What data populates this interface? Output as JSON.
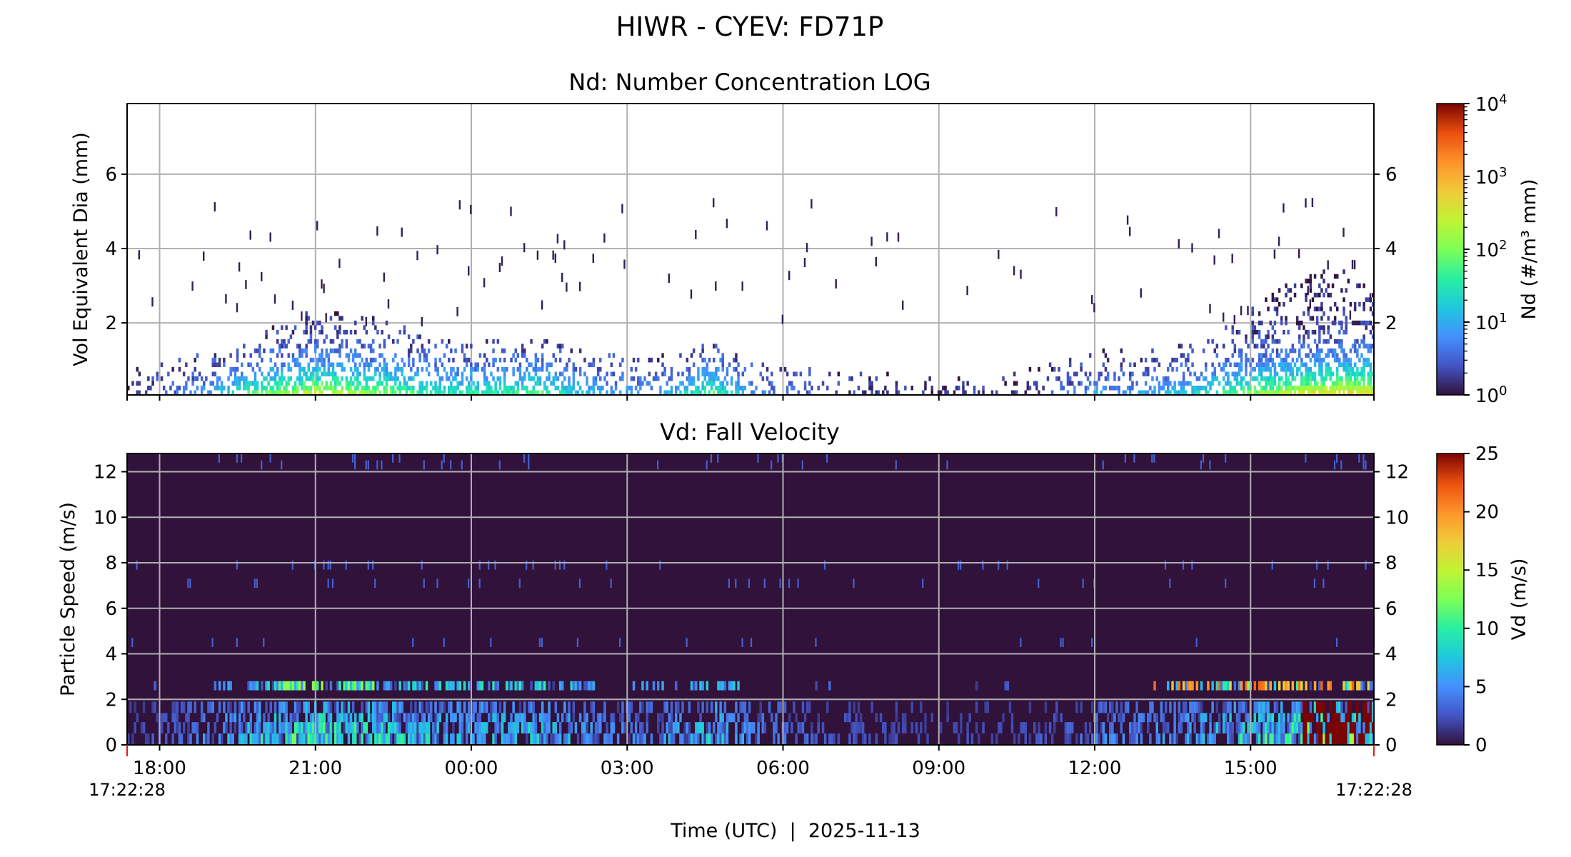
{
  "figure": {
    "suptitle": "HIWR - CYEV: FD71P",
    "xlabel": "Time (UTC)  |  2025-11-13",
    "start_label": "17:22:28",
    "end_label": "17:22:28"
  },
  "colors": {
    "grid": "#b0b0b0",
    "vd_background": "#30123b",
    "marker": "#e31a1c"
  },
  "chart_data": [
    {
      "type": "heatmap",
      "title": "Nd: Number Concentration LOG",
      "xlabel": "Time (UTC)  |  2025-11-13",
      "ylabel": "Vol Equivalent Dia (mm)",
      "x_range": [
        "2025-11-12T17:22:28Z",
        "2025-11-13T17:22:28Z"
      ],
      "x_ticks": [
        "18:00",
        "21:00",
        "00:00",
        "03:00",
        "06:00",
        "09:00",
        "12:00",
        "15:00"
      ],
      "ylim": [
        0.062,
        7.9
      ],
      "y_ticks": [
        2,
        4,
        6
      ],
      "grid": true,
      "colormap": "turbo",
      "color_scale": "log",
      "colorbar": {
        "label": "Nd (#/m³ mm)",
        "range": [
          1,
          10000
        ],
        "ticks": [
          {
            "base": "10",
            "exp": "0"
          },
          {
            "base": "10",
            "exp": "1"
          },
          {
            "base": "10",
            "exp": "2"
          },
          {
            "base": "10",
            "exp": "3"
          },
          {
            "base": "10",
            "exp": "4"
          }
        ]
      },
      "activity_profile": [
        [
          0.0,
          0.25,
          0.8
        ],
        [
          0.05,
          0.5,
          1.0
        ],
        [
          0.1,
          0.8,
          1.6
        ],
        [
          0.15,
          0.95,
          2.4
        ],
        [
          0.21,
          0.85,
          2.0
        ],
        [
          0.25,
          0.75,
          1.5
        ],
        [
          0.29,
          0.75,
          1.5
        ],
        [
          0.33,
          0.8,
          1.5
        ],
        [
          0.375,
          0.6,
          1.1
        ],
        [
          0.42,
          0.55,
          1.0
        ],
        [
          0.47,
          0.8,
          1.4
        ],
        [
          0.5,
          0.55,
          0.9
        ],
        [
          0.55,
          0.4,
          0.7
        ],
        [
          0.6,
          0.3,
          0.6
        ],
        [
          0.65,
          0.25,
          0.5
        ],
        [
          0.72,
          0.3,
          0.7
        ],
        [
          0.78,
          0.55,
          1.2
        ],
        [
          0.83,
          0.6,
          1.3
        ],
        [
          0.87,
          0.75,
          1.7
        ],
        [
          0.9,
          0.85,
          2.3
        ],
        [
          0.94,
          0.95,
          3.2
        ],
        [
          0.97,
          1.0,
          3.4
        ],
        [
          1.0,
          1.0,
          3.0
        ]
      ],
      "sparse_max_size_mm": 5.5
    },
    {
      "type": "heatmap",
      "title": "Vd: Fall Velocity",
      "xlabel": "Time (UTC)  |  2025-11-13",
      "ylabel": "Particle Speed (m/s)",
      "x_range": [
        "2025-11-12T17:22:28Z",
        "2025-11-13T17:22:28Z"
      ],
      "x_ticks": [
        "18:00",
        "21:00",
        "00:00",
        "03:00",
        "06:00",
        "09:00",
        "12:00",
        "15:00"
      ],
      "ylim": [
        0,
        12.8
      ],
      "y_ticks": [
        0,
        2,
        4,
        6,
        8,
        10,
        12
      ],
      "grid": true,
      "colormap": "turbo",
      "color_scale": "linear",
      "colorbar": {
        "label": "Vd (m/s)",
        "range": [
          0,
          25
        ],
        "ticks": [
          "0",
          "5",
          "10",
          "15",
          "20",
          "25"
        ]
      },
      "speed_bands_m_s": [
        {
          "low": 0.0,
          "high": 0.5
        },
        {
          "low": 0.5,
          "high": 1.0
        },
        {
          "low": 1.0,
          "high": 1.4
        },
        {
          "low": 1.4,
          "high": 1.9
        },
        {
          "low": 2.4,
          "high": 2.8
        }
      ],
      "sparse_speeds_m_s": [
        4.3,
        6.9,
        7.7,
        12.1,
        12.4
      ],
      "saturated_interval": {
        "start": "2025-11-13T16:00:00Z",
        "end": "2025-11-13T17:22:28Z",
        "value": 25
      },
      "hot_band_interval": {
        "start": "2025-11-13T13:00:00Z",
        "end": "2025-11-13T17:22:28Z",
        "value": 20
      }
    }
  ]
}
